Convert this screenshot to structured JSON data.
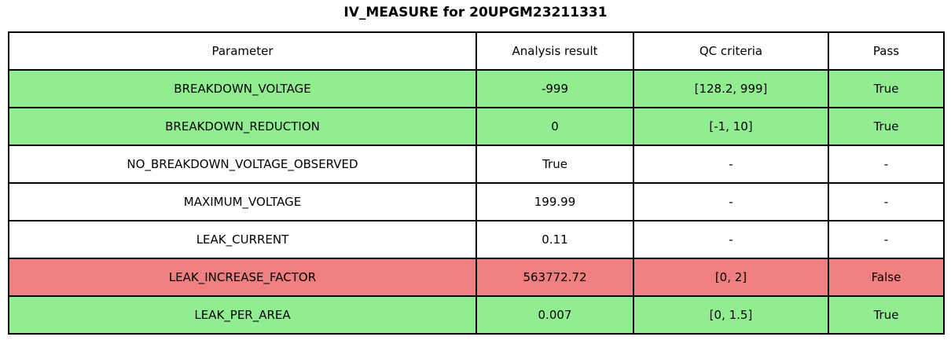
{
  "title": "IV_MEASURE for 20UPGM23211331",
  "table": {
    "columns": [
      "Parameter",
      "Analysis result",
      "QC criteria",
      "Pass"
    ],
    "rows": [
      {
        "parameter": "BREAKDOWN_VOLTAGE",
        "result": "-999",
        "qc": "[128.2, 999]",
        "pass": "True",
        "status": "pass"
      },
      {
        "parameter": "BREAKDOWN_REDUCTION",
        "result": "0",
        "qc": "[-1, 10]",
        "pass": "True",
        "status": "pass"
      },
      {
        "parameter": "NO_BREAKDOWN_VOLTAGE_OBSERVED",
        "result": "True",
        "qc": "-",
        "pass": "-",
        "status": "none"
      },
      {
        "parameter": "MAXIMUM_VOLTAGE",
        "result": "199.99",
        "qc": "-",
        "pass": "-",
        "status": "none"
      },
      {
        "parameter": "LEAK_CURRENT",
        "result": "0.11",
        "qc": "-",
        "pass": "-",
        "status": "none"
      },
      {
        "parameter": "LEAK_INCREASE_FACTOR",
        "result": "563772.72",
        "qc": "[0, 2]",
        "pass": "False",
        "status": "fail"
      },
      {
        "parameter": "LEAK_PER_AREA",
        "result": "0.007",
        "qc": "[0, 1.5]",
        "pass": "True",
        "status": "pass"
      }
    ]
  },
  "colors": {
    "pass_row": "#90EE90",
    "fail_row": "#F08080",
    "neutral_row": "#FFFFFF",
    "border": "#000000",
    "text": "#000000"
  },
  "chart_data": {
    "type": "table",
    "title": "IV_MEASURE for 20UPGM23211331",
    "columns": [
      "Parameter",
      "Analysis result",
      "QC criteria",
      "Pass"
    ],
    "rows": [
      [
        "BREAKDOWN_VOLTAGE",
        "-999",
        "[128.2, 999]",
        "True"
      ],
      [
        "BREAKDOWN_REDUCTION",
        "0",
        "[-1, 10]",
        "True"
      ],
      [
        "NO_BREAKDOWN_VOLTAGE_OBSERVED",
        "True",
        "-",
        "-"
      ],
      [
        "MAXIMUM_VOLTAGE",
        "199.99",
        "-",
        "-"
      ],
      [
        "LEAK_CURRENT",
        "0.11",
        "-",
        "-"
      ],
      [
        "LEAK_INCREASE_FACTOR",
        "563772.72",
        "[0, 2]",
        "False"
      ],
      [
        "LEAK_PER_AREA",
        "0.007",
        "[0, 1.5]",
        "True"
      ]
    ],
    "row_status": [
      "pass",
      "pass",
      "none",
      "none",
      "none",
      "fail",
      "pass"
    ],
    "layout": "title centered above table; table spans x 10-1200, y 40-440; row coloring encodes QC pass (green) / fail (red) / not-applicable (white)"
  }
}
